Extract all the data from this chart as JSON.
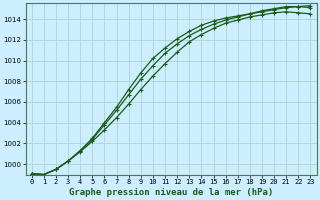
{
  "title": "Graphe pression niveau de la mer (hPa)",
  "background_color": "#cceeff",
  "plot_bg_color": "#cceeff",
  "line_color": "#1a5c1a",
  "grid_color": "#aacccc",
  "x_labels": [
    "0",
    "1",
    "2",
    "3",
    "4",
    "5",
    "6",
    "7",
    "8",
    "9",
    "10",
    "11",
    "12",
    "13",
    "14",
    "15",
    "16",
    "17",
    "18",
    "19",
    "20",
    "21",
    "22",
    "23"
  ],
  "ylim": [
    999.0,
    1015.5
  ],
  "xlim": [
    -0.5,
    23.5
  ],
  "yticks": [
    1000,
    1002,
    1004,
    1006,
    1008,
    1010,
    1012,
    1014
  ],
  "series": [
    [
      999.1,
      999.0,
      999.5,
      1000.3,
      1001.2,
      1002.2,
      1003.3,
      1004.5,
      1005.8,
      1007.2,
      1008.5,
      1009.7,
      1010.8,
      1011.8,
      1012.5,
      1013.1,
      1013.6,
      1013.9,
      1014.2,
      1014.4,
      1014.6,
      1014.7,
      1014.6,
      1014.5
    ],
    [
      999.1,
      999.0,
      999.5,
      1000.3,
      1001.3,
      1002.4,
      1003.8,
      1005.2,
      1006.7,
      1008.2,
      1009.5,
      1010.7,
      1011.6,
      1012.4,
      1013.0,
      1013.5,
      1013.9,
      1014.2,
      1014.5,
      1014.8,
      1015.0,
      1015.2,
      1015.2,
      1015.1
    ],
    [
      999.1,
      999.0,
      999.5,
      1000.3,
      1001.3,
      1002.5,
      1004.0,
      1005.5,
      1007.2,
      1008.8,
      1010.2,
      1011.2,
      1012.1,
      1012.8,
      1013.4,
      1013.8,
      1014.1,
      1014.3,
      1014.5,
      1014.7,
      1014.9,
      1015.1,
      1015.2,
      1015.3
    ]
  ]
}
